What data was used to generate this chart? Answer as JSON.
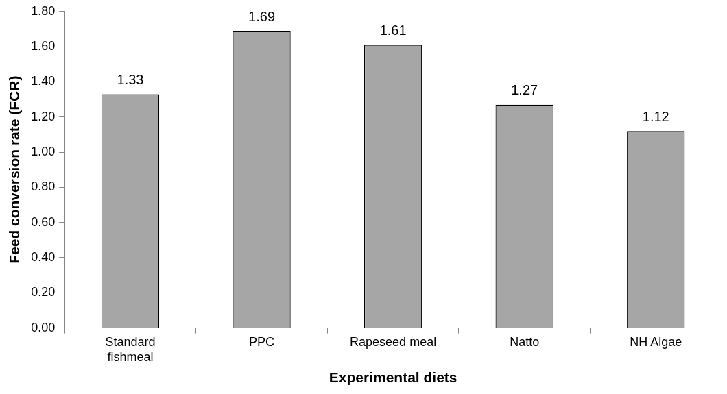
{
  "chart_data": {
    "type": "bar",
    "xlabel": "Experimental diets",
    "ylabel": "Feed conversion rate (FCR)",
    "categories": [
      "Standard fishmeal",
      "PPC",
      "Rapeseed meal",
      "Natto",
      "NH Algae"
    ],
    "values": [
      1.33,
      1.69,
      1.61,
      1.27,
      1.12
    ],
    "color": "#a6a6a6",
    "ylim": [
      0,
      1.8
    ],
    "yticks": [
      {
        "value": 0,
        "label": "0.00"
      },
      {
        "value": 0.2,
        "label": "0.20"
      },
      {
        "value": 0.4,
        "label": "0.40"
      },
      {
        "value": 0.6,
        "label": "0.60"
      },
      {
        "value": 0.8,
        "label": "0.80"
      },
      {
        "value": 1,
        "label": "1.00"
      },
      {
        "value": 1.2,
        "label": "1.20"
      },
      {
        "value": 1.4,
        "label": "1.40"
      },
      {
        "value": 1.6,
        "label": "1.60"
      },
      {
        "value": 1.8,
        "label": "1.80"
      }
    ],
    "data_labels": true,
    "grid": false,
    "legend": false
  }
}
